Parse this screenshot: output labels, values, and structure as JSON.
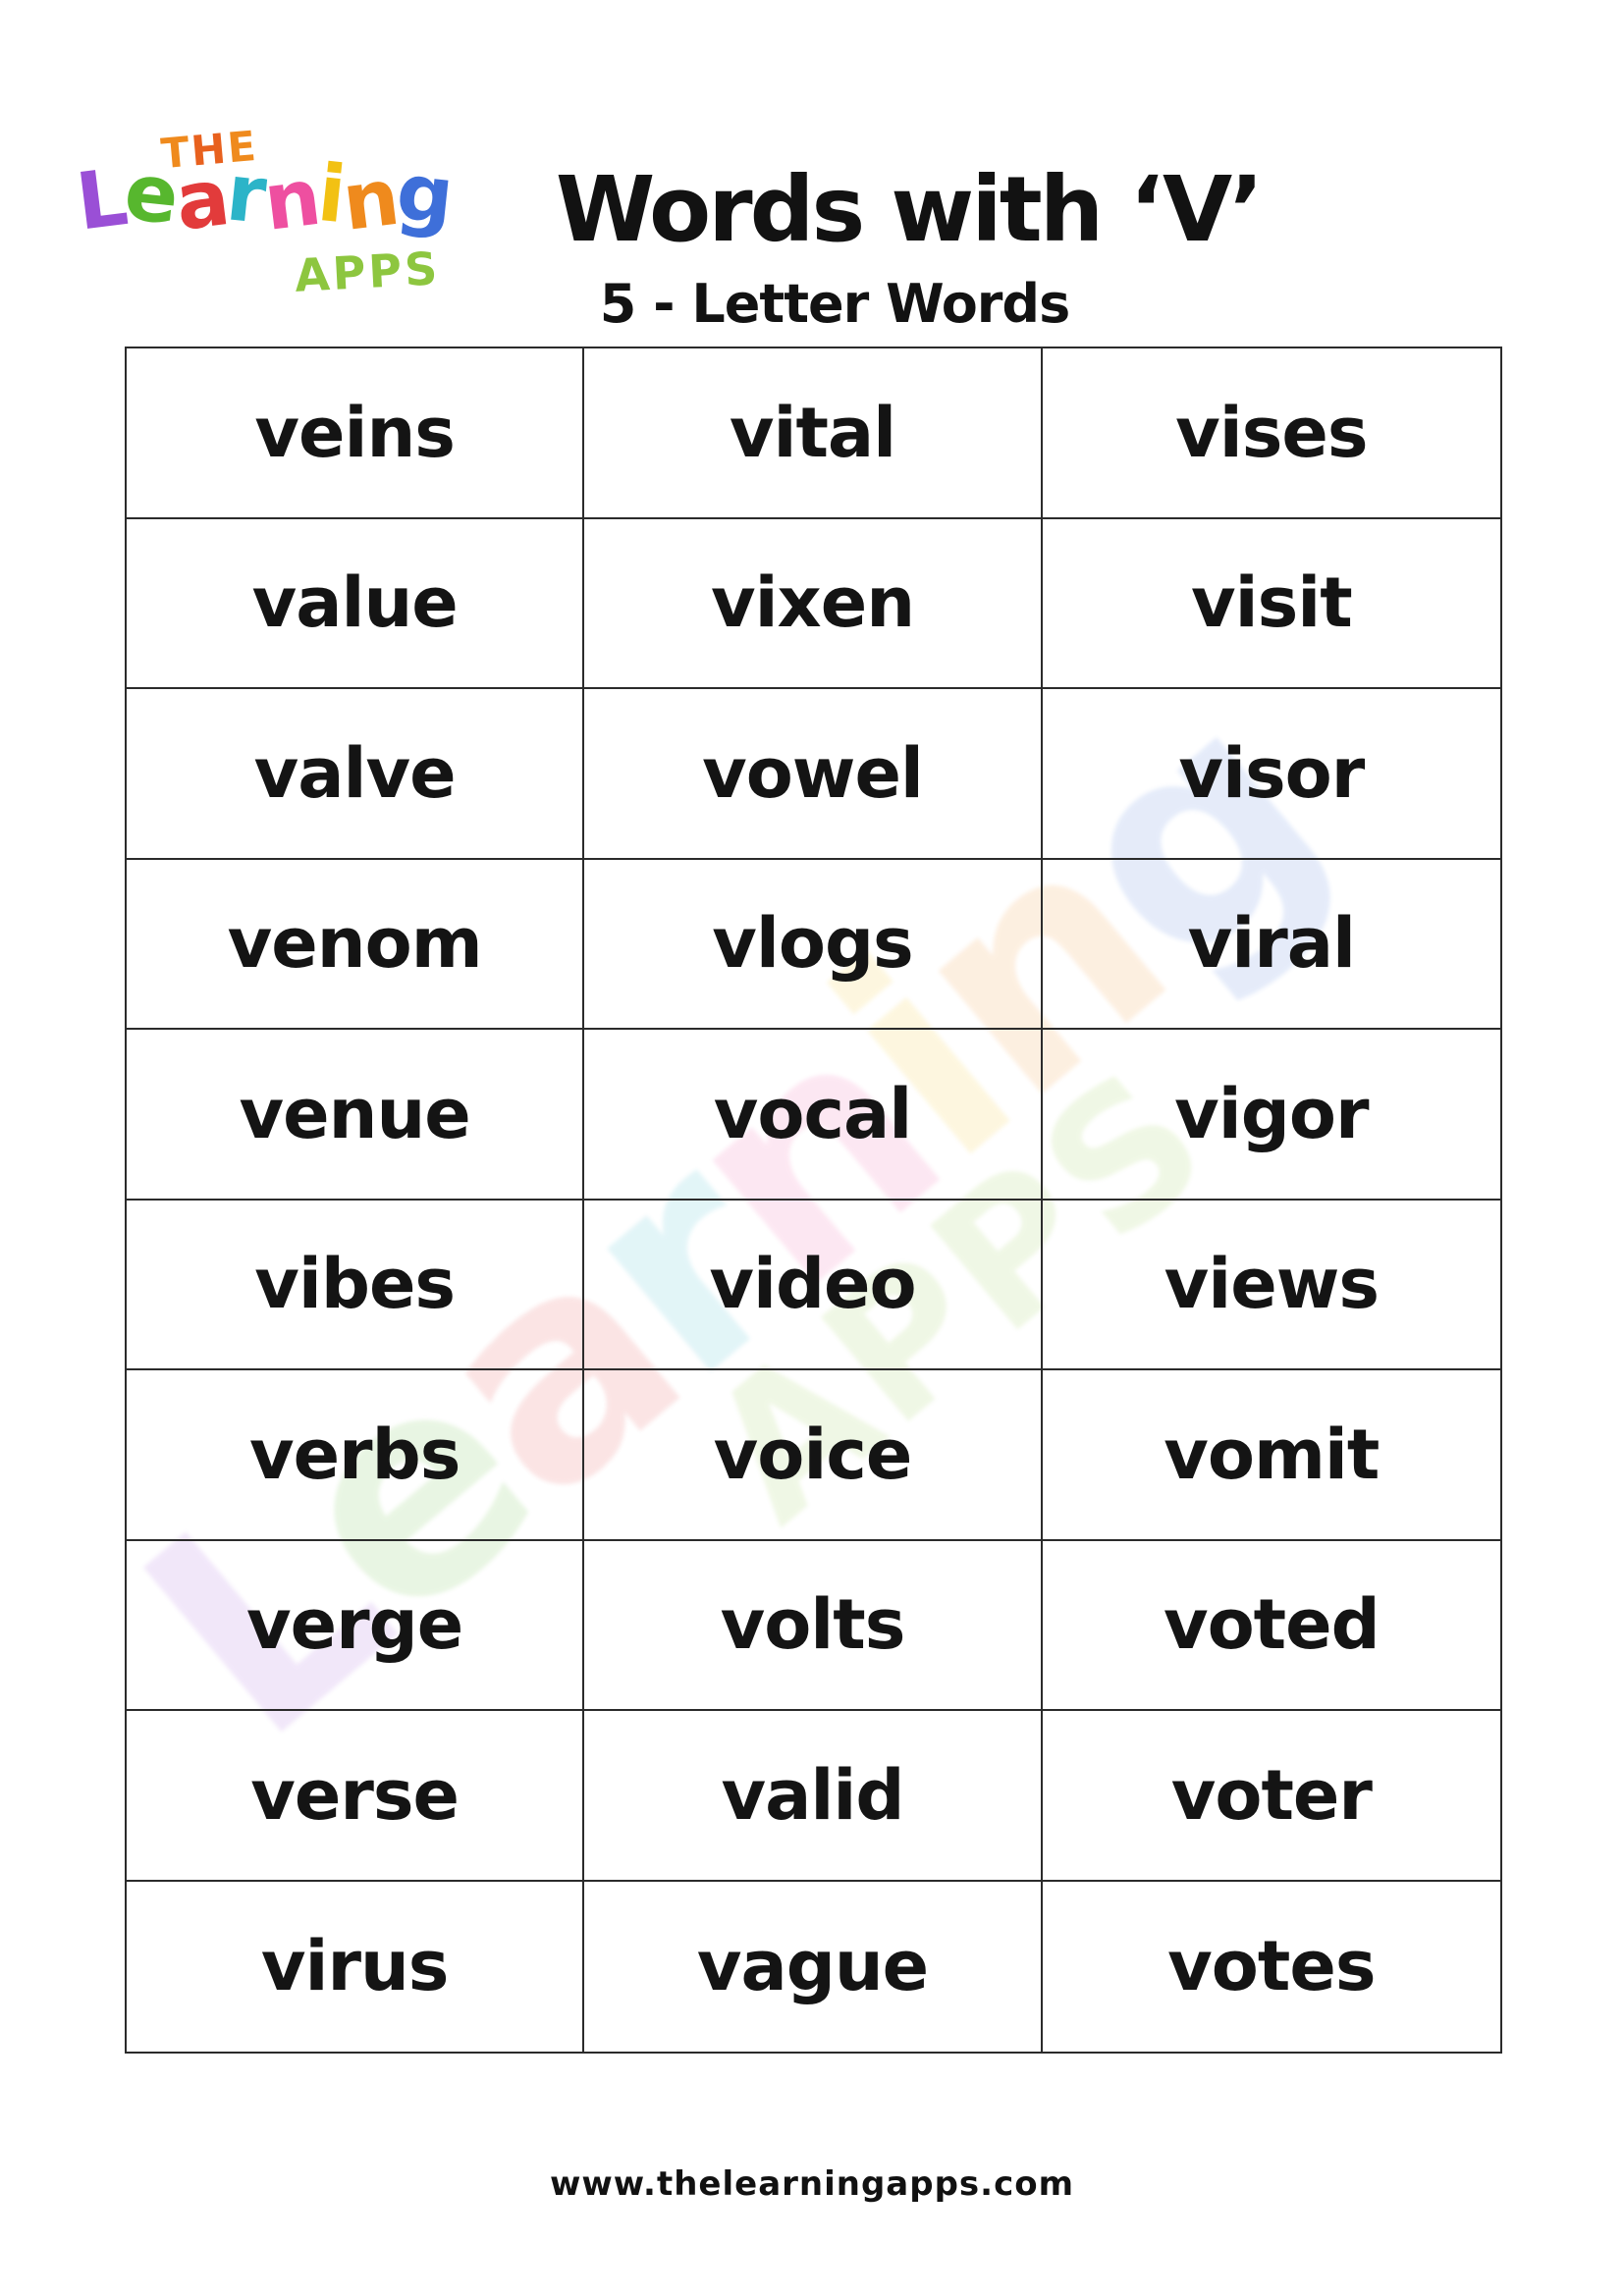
{
  "header": {
    "title": "Words with ‘V’",
    "subtitle": "5 - Letter Words"
  },
  "logo": {
    "the_letters": [
      {
        "ch": "T",
        "color": "#ef8a1d"
      },
      {
        "ch": "H",
        "color": "#e8611e"
      },
      {
        "ch": "E",
        "color": "#ef8a1d"
      }
    ],
    "learning_letters": [
      {
        "ch": "L",
        "color": "#9a4fd6"
      },
      {
        "ch": "e",
        "color": "#57b72e"
      },
      {
        "ch": "a",
        "color": "#e23b3b"
      },
      {
        "ch": "r",
        "color": "#2cb4c8"
      },
      {
        "ch": "n",
        "color": "#ee4fa0"
      },
      {
        "ch": "i",
        "color": "#f2c113"
      },
      {
        "ch": "n",
        "color": "#ef8a1d"
      },
      {
        "ch": "g",
        "color": "#3e6fd9"
      }
    ],
    "apps_text": "APPS",
    "apps_color": "#8dc63f"
  },
  "table": {
    "rows": [
      [
        "veins",
        "vital",
        "vises"
      ],
      [
        "value",
        "vixen",
        "visit"
      ],
      [
        "valve",
        "vowel",
        "visor"
      ],
      [
        "venom",
        "vlogs",
        "viral"
      ],
      [
        "venue",
        "vocal",
        "vigor"
      ],
      [
        "vibes",
        "video",
        "views"
      ],
      [
        "verbs",
        "voice",
        "vomit"
      ],
      [
        "verge",
        "volts",
        "voted"
      ],
      [
        "verse",
        "valid",
        "voter"
      ],
      [
        "virus",
        "vague",
        "votes"
      ]
    ]
  },
  "footer": {
    "url": "www.thelearningapps.com"
  },
  "colors": {
    "text": "#121212",
    "table_border": "#2b2b2b"
  }
}
